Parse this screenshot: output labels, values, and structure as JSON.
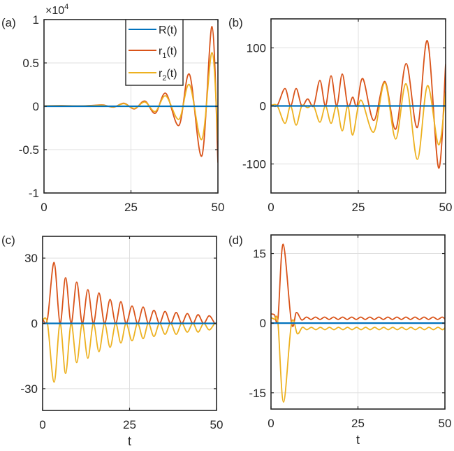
{
  "colors": {
    "R": "#0072BD",
    "r1": "#D95319",
    "r2": "#EDB120",
    "axis": "#262626",
    "grid": "#DFDFDF"
  },
  "legend": {
    "entries": [
      {
        "key": "R",
        "base": "R",
        "sub": "",
        "suffix": "(t)"
      },
      {
        "key": "r1",
        "base": "r",
        "sub": "1",
        "suffix": "(t)"
      },
      {
        "key": "r2",
        "base": "r",
        "sub": "2",
        "suffix": "(t)"
      }
    ],
    "placement": "top-center of panel (a)"
  },
  "chart_data": [
    {
      "type": "line",
      "panel_label": "(a)",
      "title": "",
      "xlabel": "",
      "ylabel": "",
      "xlim": [
        0,
        50
      ],
      "ylim": [
        -1,
        1
      ],
      "y_multiplier_label": "×10",
      "y_multiplier_exp": "4",
      "xticks": [
        0,
        25,
        50
      ],
      "xtick_labels": [
        "0",
        "25",
        "50"
      ],
      "yticks": [
        -1,
        -0.5,
        0,
        0.5,
        1
      ],
      "ytick_labels": [
        "-1",
        "-0.5",
        "0",
        "0.5",
        "1"
      ],
      "grid": true,
      "legend": true,
      "series": [
        {
          "name": "R(t)",
          "key": "R",
          "points": [
            [
              0,
              0
            ],
            [
              50,
              0
            ]
          ]
        },
        {
          "name": "r1(t)",
          "key": "r1",
          "points": [
            [
              0,
              0.005
            ],
            [
              5,
              0.008
            ],
            [
              10,
              0.004
            ],
            [
              14,
              0.01
            ],
            [
              17,
              0.015
            ],
            [
              20,
              -0.01
            ],
            [
              23,
              0.035
            ],
            [
              26,
              -0.03
            ],
            [
              29,
              0.06
            ],
            [
              32,
              -0.08
            ],
            [
              35,
              0.15
            ],
            [
              38.8,
              -0.22
            ],
            [
              41.8,
              0.37
            ],
            [
              45.4,
              -0.57
            ],
            [
              48.3,
              0.92
            ],
            [
              50,
              -0.65
            ]
          ]
        },
        {
          "name": "r2(t)",
          "key": "r2",
          "points": [
            [
              0,
              0.005
            ],
            [
              5,
              0.006
            ],
            [
              10,
              0.003
            ],
            [
              14,
              0.008
            ],
            [
              17,
              0.012
            ],
            [
              20,
              -0.008
            ],
            [
              23,
              0.03
            ],
            [
              26,
              -0.025
            ],
            [
              29,
              0.05
            ],
            [
              32,
              -0.06
            ],
            [
              35,
              0.12
            ],
            [
              38.8,
              -0.15
            ],
            [
              41.8,
              0.25
            ],
            [
              45.4,
              -0.38
            ],
            [
              48.3,
              0.62
            ],
            [
              50,
              -0.4
            ]
          ]
        }
      ]
    },
    {
      "type": "line",
      "panel_label": "(b)",
      "title": "",
      "xlabel": "",
      "ylabel": "",
      "xlim": [
        0,
        50
      ],
      "ylim": [
        -150,
        150
      ],
      "xticks": [
        0,
        25,
        50
      ],
      "xtick_labels": [
        "0",
        "25",
        "50"
      ],
      "yticks": [
        -100,
        0,
        100
      ],
      "ytick_labels": [
        "-100",
        "0",
        "100"
      ],
      "grid": true,
      "legend": false,
      "series": [
        {
          "name": "R(t)",
          "key": "R",
          "points": [
            [
              0,
              0
            ],
            [
              50,
              0
            ]
          ]
        },
        {
          "name": "r1(t)",
          "key": "r1",
          "points": [
            [
              0,
              2
            ],
            [
              1.8,
              1
            ],
            [
              4,
              30
            ],
            [
              5.6,
              0
            ],
            [
              7.2,
              30
            ],
            [
              8.8,
              0
            ],
            [
              10.5,
              12
            ],
            [
              12.2,
              0
            ],
            [
              14,
              44
            ],
            [
              15.6,
              0
            ],
            [
              17.2,
              52
            ],
            [
              18.8,
              0
            ],
            [
              20.4,
              55
            ],
            [
              22,
              0
            ],
            [
              23.4,
              15
            ],
            [
              24.6,
              0
            ],
            [
              26.3,
              47
            ],
            [
              29.4,
              -25
            ],
            [
              32.6,
              42
            ],
            [
              35.7,
              -40
            ],
            [
              38.7,
              73
            ],
            [
              41.9,
              -37
            ],
            [
              44.8,
              112
            ],
            [
              48,
              -107
            ],
            [
              50,
              72
            ]
          ]
        },
        {
          "name": "r2(t)",
          "key": "r2",
          "points": [
            [
              0,
              1
            ],
            [
              1.8,
              0
            ],
            [
              4,
              -30
            ],
            [
              5.6,
              0
            ],
            [
              7.2,
              -33
            ],
            [
              8.8,
              0
            ],
            [
              10.5,
              -3
            ],
            [
              12.2,
              0
            ],
            [
              14,
              -28
            ],
            [
              15.6,
              0
            ],
            [
              17.2,
              -30
            ],
            [
              18.8,
              0
            ],
            [
              20.4,
              -43
            ],
            [
              22,
              0
            ],
            [
              23.4,
              -50
            ],
            [
              25.7,
              10
            ],
            [
              29.4,
              -45
            ],
            [
              32.6,
              40
            ],
            [
              35.7,
              -57
            ],
            [
              38.7,
              38
            ],
            [
              41.9,
              -92
            ],
            [
              44.8,
              35
            ],
            [
              48,
              -67
            ],
            [
              50,
              25
            ]
          ]
        }
      ]
    },
    {
      "type": "line",
      "panel_label": "(c)",
      "title": "",
      "xlabel": "t",
      "ylabel": "",
      "xlim": [
        0,
        50
      ],
      "ylim": [
        -40,
        40
      ],
      "xticks": [
        0,
        25,
        50
      ],
      "xtick_labels": [
        "0",
        "25",
        "50"
      ],
      "yticks": [
        -30,
        0,
        30
      ],
      "ytick_labels": [
        "-30",
        "0",
        "30"
      ],
      "grid": true,
      "legend": false,
      "series": [
        {
          "name": "R(t)",
          "key": "R",
          "points": [
            [
              0,
              0
            ],
            [
              50,
              0
            ]
          ]
        },
        {
          "name": "r1(t)",
          "key": "r1",
          "points": [
            [
              0,
              2
            ],
            [
              1.4,
              2
            ],
            [
              3.3,
              28
            ],
            [
              5,
              0
            ],
            [
              6.6,
              21
            ],
            [
              8.2,
              0
            ],
            [
              9.8,
              19
            ],
            [
              11.4,
              0
            ],
            [
              13,
              15.5
            ],
            [
              14.6,
              0
            ],
            [
              16.2,
              14
            ],
            [
              17.8,
              0
            ],
            [
              19.4,
              11
            ],
            [
              21,
              0
            ],
            [
              22.5,
              10
            ],
            [
              24,
              0
            ],
            [
              25.7,
              8
            ],
            [
              27.3,
              0
            ],
            [
              28.9,
              7.5
            ],
            [
              30.4,
              0
            ],
            [
              32,
              6
            ],
            [
              33.6,
              0
            ],
            [
              35.2,
              5.5
            ],
            [
              36.8,
              0
            ],
            [
              38.4,
              5
            ],
            [
              40,
              0
            ],
            [
              41.6,
              4.5
            ],
            [
              43.2,
              0
            ],
            [
              44.7,
              4
            ],
            [
              46.3,
              0
            ],
            [
              47.9,
              3.5
            ],
            [
              49.5,
              0
            ],
            [
              50,
              0.5
            ]
          ]
        },
        {
          "name": "r2(t)",
          "key": "r2",
          "points": [
            [
              0,
              1.5
            ],
            [
              1.4,
              0
            ],
            [
              3.3,
              -27
            ],
            [
              5,
              0
            ],
            [
              6.6,
              -23
            ],
            [
              8.2,
              0
            ],
            [
              9.8,
              -18
            ],
            [
              11.4,
              0
            ],
            [
              13,
              -16
            ],
            [
              14.6,
              0
            ],
            [
              16.2,
              -13
            ],
            [
              17.8,
              0
            ],
            [
              19.4,
              -11
            ],
            [
              21,
              0
            ],
            [
              22.5,
              -9
            ],
            [
              24,
              0
            ],
            [
              25.7,
              -8
            ],
            [
              27.3,
              0
            ],
            [
              28.9,
              -7
            ],
            [
              30.4,
              0
            ],
            [
              32,
              -6
            ],
            [
              33.6,
              0
            ],
            [
              35.2,
              -5
            ],
            [
              36.8,
              0
            ],
            [
              38.4,
              -5
            ],
            [
              40,
              0
            ],
            [
              41.6,
              -4
            ],
            [
              43.2,
              0
            ],
            [
              44.7,
              -4
            ],
            [
              46.3,
              0
            ],
            [
              47.9,
              -3
            ],
            [
              49.5,
              0
            ],
            [
              50,
              -0.5
            ]
          ]
        }
      ]
    },
    {
      "type": "line",
      "panel_label": "(d)",
      "title": "",
      "xlabel": "t",
      "ylabel": "",
      "xlim": [
        0,
        50
      ],
      "ylim": [
        -18.5,
        19
      ],
      "xticks": [
        0,
        25,
        50
      ],
      "xtick_labels": [
        "0",
        "25",
        "50"
      ],
      "yticks": [
        -15,
        0,
        15
      ],
      "ytick_labels": [
        "-15",
        "0",
        "15"
      ],
      "grid": true,
      "legend": false,
      "series": [
        {
          "name": "R(t)",
          "key": "R",
          "points": [
            [
              0,
              0
            ],
            [
              50,
              0
            ]
          ]
        },
        {
          "name": "r1(t)",
          "key": "r1",
          "points": [
            [
              0,
              2
            ],
            [
              1,
              1.8
            ],
            [
              2,
              1.0
            ],
            [
              3.5,
              17
            ],
            [
              5.9,
              0
            ],
            [
              7.3,
              2.3
            ],
            [
              8.8,
              0.7
            ],
            [
              10.2,
              1.3
            ],
            [
              11.5,
              0.8
            ],
            [
              12.8,
              1.3
            ],
            [
              14.1,
              0.8
            ],
            [
              15.4,
              1.3
            ],
            [
              16.7,
              0.8
            ],
            [
              18,
              1.3
            ],
            [
              19.3,
              0.8
            ],
            [
              20.6,
              1.3
            ],
            [
              21.9,
              0.8
            ],
            [
              23.2,
              1.3
            ],
            [
              24.5,
              0.8
            ],
            [
              25.8,
              1.3
            ],
            [
              27.1,
              0.8
            ],
            [
              28.4,
              1.3
            ],
            [
              29.7,
              0.8
            ],
            [
              31,
              1.3
            ],
            [
              32.3,
              0.8
            ],
            [
              33.6,
              1.3
            ],
            [
              34.9,
              0.8
            ],
            [
              36.2,
              1.3
            ],
            [
              37.5,
              0.8
            ],
            [
              38.8,
              1.3
            ],
            [
              40.1,
              0.8
            ],
            [
              41.4,
              1.3
            ],
            [
              42.7,
              0.8
            ],
            [
              44,
              1.3
            ],
            [
              45.3,
              0.8
            ],
            [
              46.6,
              1.3
            ],
            [
              47.9,
              0.8
            ],
            [
              49.2,
              1.3
            ],
            [
              50,
              0.9
            ]
          ]
        },
        {
          "name": "r2(t)",
          "key": "r2",
          "points": [
            [
              0,
              1.2
            ],
            [
              1,
              0.8
            ],
            [
              2,
              0
            ],
            [
              3.6,
              -17
            ],
            [
              5.9,
              0
            ],
            [
              7.6,
              -2.3
            ],
            [
              9,
              -0.9
            ],
            [
              10.3,
              -1.4
            ],
            [
              11.6,
              -0.9
            ],
            [
              12.9,
              -1.4
            ],
            [
              14.2,
              -0.9
            ],
            [
              15.5,
              -1.4
            ],
            [
              16.8,
              -0.9
            ],
            [
              18.1,
              -1.4
            ],
            [
              19.4,
              -0.9
            ],
            [
              20.7,
              -1.4
            ],
            [
              22,
              -0.9
            ],
            [
              23.3,
              -1.4
            ],
            [
              24.6,
              -0.9
            ],
            [
              25.9,
              -1.4
            ],
            [
              27.2,
              -0.9
            ],
            [
              28.5,
              -1.4
            ],
            [
              29.8,
              -0.9
            ],
            [
              31.1,
              -1.4
            ],
            [
              32.4,
              -0.9
            ],
            [
              33.7,
              -1.4
            ],
            [
              35,
              -0.9
            ],
            [
              36.3,
              -1.4
            ],
            [
              37.6,
              -0.9
            ],
            [
              38.9,
              -1.4
            ],
            [
              40.2,
              -0.9
            ],
            [
              41.5,
              -1.4
            ],
            [
              42.8,
              -0.9
            ],
            [
              44.1,
              -1.4
            ],
            [
              45.4,
              -0.9
            ],
            [
              46.7,
              -1.4
            ],
            [
              48,
              -0.9
            ],
            [
              49.3,
              -1.4
            ],
            [
              50,
              -1.0
            ]
          ]
        }
      ]
    }
  ]
}
